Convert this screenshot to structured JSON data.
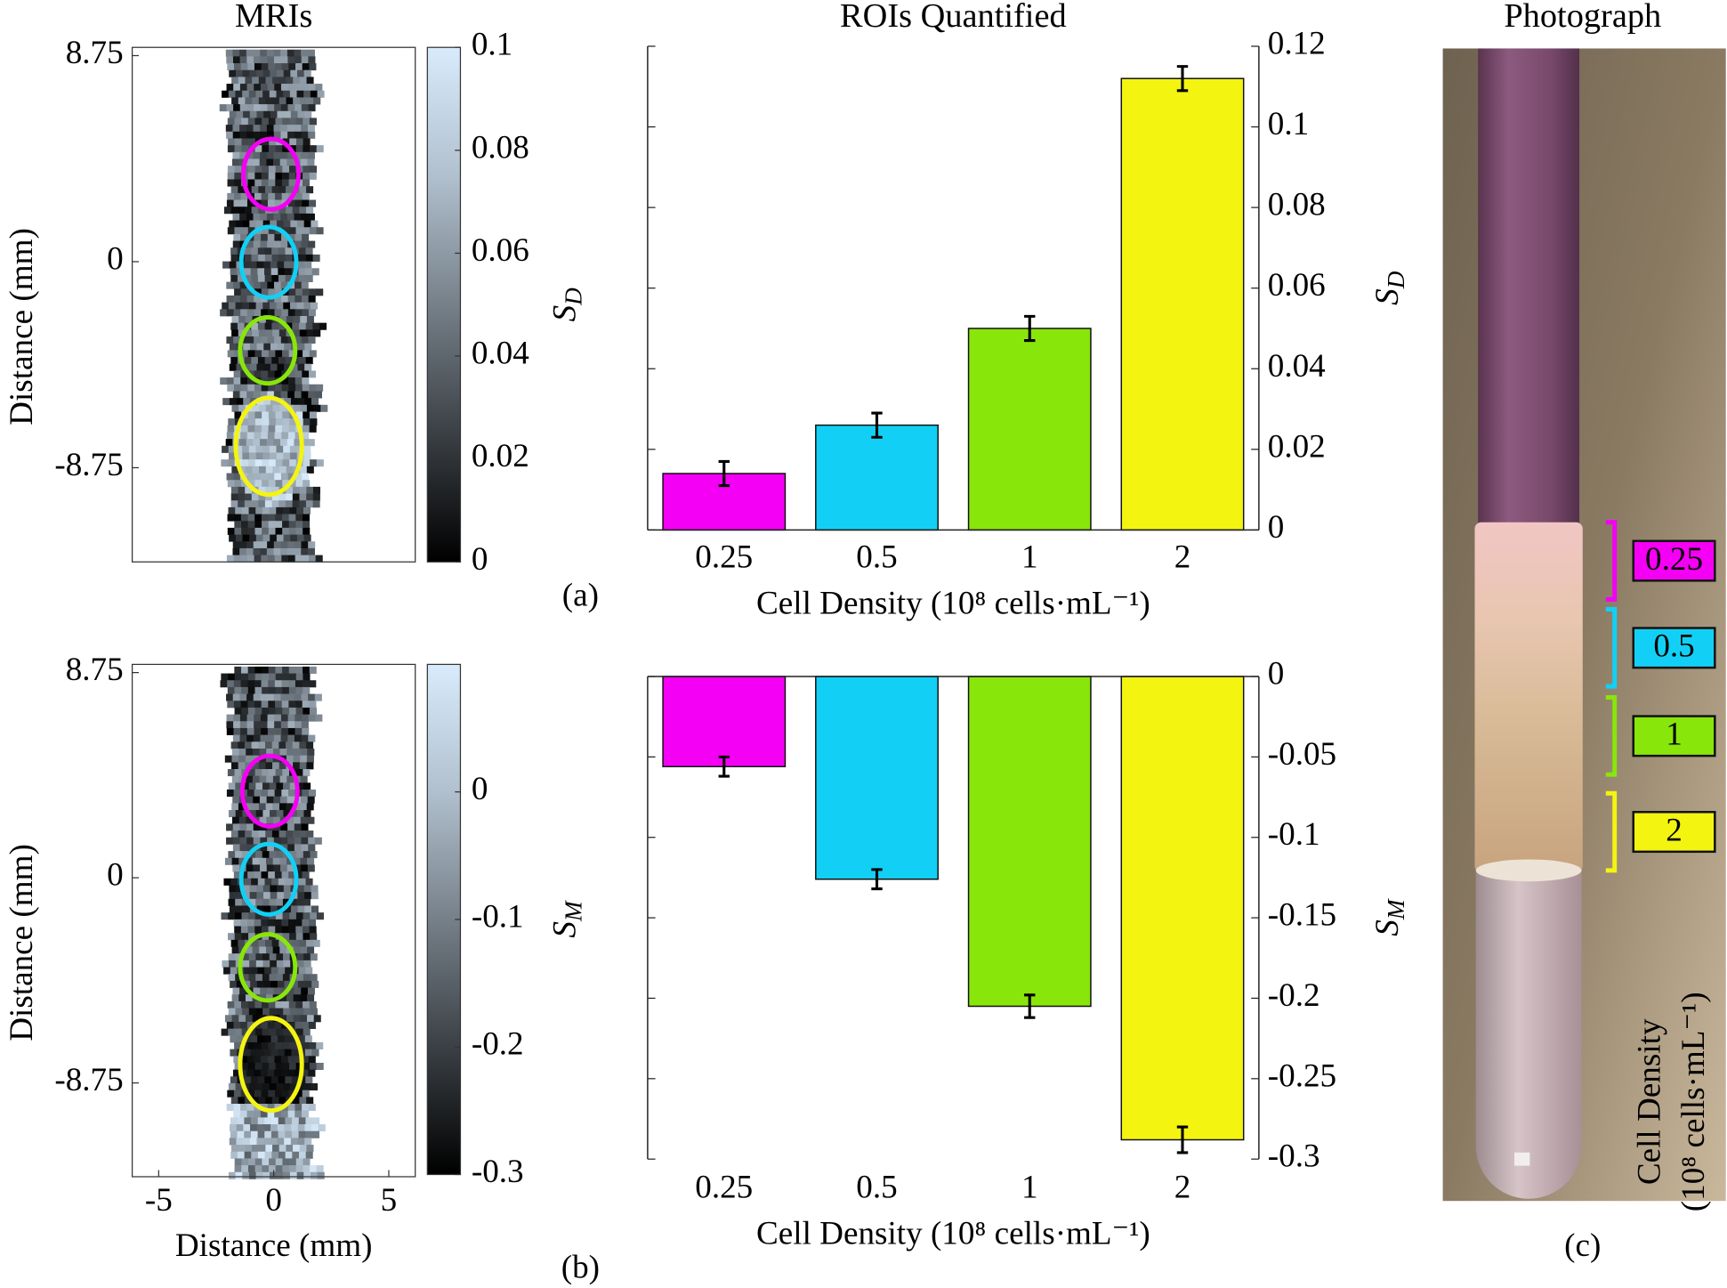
{
  "chart_data": [
    {
      "type": "image",
      "title": "MRIs",
      "ylabel": "Distance (mm)",
      "xlim": [
        -6.15,
        6.15
      ],
      "ylim": [
        -12.75,
        9.1
      ],
      "yticks": [
        8.75,
        0,
        -8.75
      ],
      "colorbar": {
        "clim": [
          0,
          0.1
        ],
        "ticks": [
          0,
          0.02,
          0.04,
          0.06,
          0.08,
          0.1
        ],
        "label": {
          "text": "S",
          "sub": "D"
        }
      }
    },
    {
      "type": "bar",
      "title": "ROIs Quantified",
      "xlabel": "Cell Density (10⁸ cells·mL⁻¹)",
      "ylabel": {
        "text": "S",
        "sub": "D"
      },
      "categories": [
        "0.25",
        "0.5",
        "1",
        "2"
      ],
      "values": [
        0.014,
        0.026,
        0.05,
        0.112
      ],
      "errors": [
        0.003,
        0.003,
        0.003,
        0.003
      ],
      "colors": [
        "#f400f4",
        "#12d0f5",
        "#88e60a",
        "#f4f411"
      ],
      "ylim": [
        0,
        0.12
      ],
      "yticks": [
        0,
        0.02,
        0.04,
        0.06,
        0.08,
        0.1,
        0.12
      ]
    },
    {
      "type": "image",
      "ylabel": "Distance (mm)",
      "xlabel": "Distance (mm)",
      "xlim": [
        -6.15,
        6.15
      ],
      "xticks": [
        -5,
        0,
        5
      ],
      "ylim": [
        -12.75,
        9.1
      ],
      "yticks": [
        8.75,
        0,
        -8.75
      ],
      "colorbar": {
        "clim": [
          -0.3,
          0.1
        ],
        "ticks": [
          -0.3,
          -0.2,
          -0.1,
          0
        ],
        "label": {
          "text": "S",
          "sub": "M"
        }
      }
    },
    {
      "type": "bar",
      "xlabel": "Cell Density (10⁸ cells·mL⁻¹)",
      "ylabel": {
        "text": "S",
        "sub": "M"
      },
      "categories": [
        "0.25",
        "0.5",
        "1",
        "2"
      ],
      "values": [
        -0.056,
        -0.126,
        -0.205,
        -0.288
      ],
      "errors": [
        0.006,
        0.006,
        0.007,
        0.008
      ],
      "colors": [
        "#f400f4",
        "#12d0f5",
        "#88e60a",
        "#f4f411"
      ],
      "ylim": [
        -0.3,
        0
      ],
      "yticks": [
        0,
        -0.05,
        -0.1,
        -0.15,
        -0.2,
        -0.25,
        -0.3
      ]
    }
  ],
  "figure": {
    "panel_labels": [
      "(a)",
      "(b)",
      "(c)"
    ],
    "photo": {
      "title": "Photograph",
      "labels": [
        "0.25",
        "0.5",
        "1",
        "2"
      ],
      "label_colors": [
        "#f400f4",
        "#12d0f5",
        "#88e60a",
        "#f4f411"
      ],
      "axis_label": [
        "Cell Density",
        "(10⁸ cells·mL⁻¹)"
      ]
    }
  }
}
